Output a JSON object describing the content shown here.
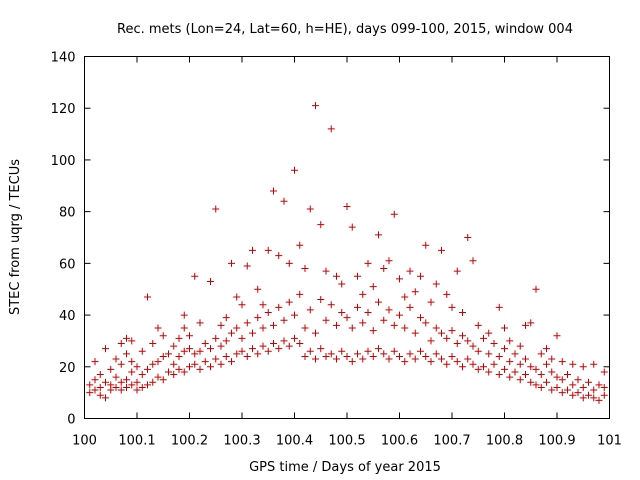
{
  "chart_data": {
    "type": "scatter",
    "title": "Rec. mets (Lon=24, Lat=60, h=HE), days 099-100, 2015, window 004",
    "xlabel": "GPS time / Days of year 2015",
    "ylabel": "STEC from uqrg / TECUs",
    "xlim": [
      100,
      101
    ],
    "ylim": [
      0,
      140
    ],
    "xticks": [
      100,
      100.1,
      100.2,
      100.3,
      100.4,
      100.5,
      100.6,
      100.7,
      100.8,
      100.9,
      101
    ],
    "xtick_labels": [
      "100",
      "100.1",
      "100.2",
      "100.3",
      "100.4",
      "100.5",
      "100.6",
      "100.7",
      "100.8",
      "100.9",
      "101"
    ],
    "yticks": [
      0,
      20,
      40,
      60,
      80,
      100,
      120,
      140
    ],
    "ytick_labels": [
      "0",
      "20",
      "40",
      "60",
      "80",
      "100",
      "120",
      "140"
    ],
    "grid": false,
    "legend": "none",
    "marker": "plus",
    "color": "#cc0000",
    "series": [
      {
        "points": [
          [
            100.01,
            10
          ],
          [
            100.01,
            13
          ],
          [
            100.02,
            11
          ],
          [
            100.02,
            15
          ],
          [
            100.02,
            22
          ],
          [
            100.03,
            9
          ],
          [
            100.03,
            12
          ],
          [
            100.03,
            17
          ],
          [
            100.04,
            8
          ],
          [
            100.04,
            14
          ],
          [
            100.04,
            27
          ],
          [
            100.05,
            11
          ],
          [
            100.05,
            13
          ],
          [
            100.05,
            19
          ],
          [
            100.06,
            12
          ],
          [
            100.06,
            16
          ],
          [
            100.06,
            23
          ],
          [
            100.07,
            11
          ],
          [
            100.07,
            14
          ],
          [
            100.07,
            21
          ],
          [
            100.07,
            29
          ],
          [
            100.08,
            12
          ],
          [
            100.08,
            15
          ],
          [
            100.08,
            25
          ],
          [
            100.08,
            31
          ],
          [
            100.09,
            13
          ],
          [
            100.09,
            18
          ],
          [
            100.09,
            22
          ],
          [
            100.09,
            30
          ],
          [
            100.1,
            11
          ],
          [
            100.1,
            14
          ],
          [
            100.1,
            20
          ],
          [
            100.11,
            12
          ],
          [
            100.11,
            17
          ],
          [
            100.11,
            26
          ],
          [
            100.12,
            13
          ],
          [
            100.12,
            19
          ],
          [
            100.12,
            47
          ],
          [
            100.13,
            14
          ],
          [
            100.13,
            21
          ],
          [
            100.13,
            29
          ],
          [
            100.14,
            16
          ],
          [
            100.14,
            22
          ],
          [
            100.14,
            35
          ],
          [
            100.15,
            15
          ],
          [
            100.15,
            24
          ],
          [
            100.15,
            32
          ],
          [
            100.16,
            18
          ],
          [
            100.16,
            25
          ],
          [
            100.17,
            17
          ],
          [
            100.17,
            21
          ],
          [
            100.17,
            28
          ],
          [
            100.18,
            19
          ],
          [
            100.18,
            24
          ],
          [
            100.18,
            31
          ],
          [
            100.19,
            18
          ],
          [
            100.19,
            26
          ],
          [
            100.19,
            35
          ],
          [
            100.19,
            40
          ],
          [
            100.2,
            20
          ],
          [
            100.2,
            27
          ],
          [
            100.2,
            32
          ],
          [
            100.21,
            21
          ],
          [
            100.21,
            25
          ],
          [
            100.21,
            55
          ],
          [
            100.22,
            19
          ],
          [
            100.22,
            26
          ],
          [
            100.22,
            37
          ],
          [
            100.23,
            22
          ],
          [
            100.23,
            29
          ],
          [
            100.24,
            20
          ],
          [
            100.24,
            27
          ],
          [
            100.24,
            53
          ],
          [
            100.25,
            23
          ],
          [
            100.25,
            31
          ],
          [
            100.25,
            81
          ],
          [
            100.26,
            21
          ],
          [
            100.26,
            28
          ],
          [
            100.26,
            36
          ],
          [
            100.27,
            24
          ],
          [
            100.27,
            30
          ],
          [
            100.27,
            39
          ],
          [
            100.28,
            22
          ],
          [
            100.28,
            33
          ],
          [
            100.28,
            60
          ],
          [
            100.29,
            25
          ],
          [
            100.29,
            35
          ],
          [
            100.29,
            47
          ],
          [
            100.3,
            26
          ],
          [
            100.3,
            31
          ],
          [
            100.3,
            44
          ],
          [
            100.31,
            24
          ],
          [
            100.31,
            37
          ],
          [
            100.31,
            59
          ],
          [
            100.32,
            27
          ],
          [
            100.32,
            33
          ],
          [
            100.32,
            65
          ],
          [
            100.33,
            25
          ],
          [
            100.33,
            39
          ],
          [
            100.33,
            50
          ],
          [
            100.34,
            28
          ],
          [
            100.34,
            35
          ],
          [
            100.34,
            44
          ],
          [
            100.35,
            26
          ],
          [
            100.35,
            41
          ],
          [
            100.35,
            65
          ],
          [
            100.36,
            29
          ],
          [
            100.36,
            36
          ],
          [
            100.36,
            88
          ],
          [
            100.37,
            27
          ],
          [
            100.37,
            43
          ],
          [
            100.37,
            63
          ],
          [
            100.38,
            30
          ],
          [
            100.38,
            38
          ],
          [
            100.38,
            84
          ],
          [
            100.39,
            28
          ],
          [
            100.39,
            45
          ],
          [
            100.39,
            60
          ],
          [
            100.4,
            31
          ],
          [
            100.4,
            40
          ],
          [
            100.4,
            96
          ],
          [
            100.41,
            29
          ],
          [
            100.41,
            48
          ],
          [
            100.41,
            67
          ],
          [
            100.42,
            24
          ],
          [
            100.42,
            35
          ],
          [
            100.42,
            58
          ],
          [
            100.43,
            26
          ],
          [
            100.43,
            42
          ],
          [
            100.43,
            81
          ],
          [
            100.44,
            23
          ],
          [
            100.44,
            33
          ],
          [
            100.44,
            121
          ],
          [
            100.45,
            27
          ],
          [
            100.45,
            46
          ],
          [
            100.45,
            75
          ],
          [
            100.46,
            24
          ],
          [
            100.46,
            38
          ],
          [
            100.46,
            57
          ],
          [
            100.47,
            25
          ],
          [
            100.47,
            44
          ],
          [
            100.47,
            112
          ],
          [
            100.48,
            23
          ],
          [
            100.48,
            36
          ],
          [
            100.48,
            55
          ],
          [
            100.49,
            26
          ],
          [
            100.49,
            41
          ],
          [
            100.49,
            52
          ],
          [
            100.5,
            24
          ],
          [
            100.5,
            39
          ],
          [
            100.5,
            82
          ],
          [
            100.51,
            22
          ],
          [
            100.51,
            35
          ],
          [
            100.51,
            74
          ],
          [
            100.52,
            25
          ],
          [
            100.52,
            43
          ],
          [
            100.52,
            55
          ],
          [
            100.53,
            23
          ],
          [
            100.53,
            37
          ],
          [
            100.53,
            48
          ],
          [
            100.54,
            26
          ],
          [
            100.54,
            41
          ],
          [
            100.54,
            60
          ],
          [
            100.55,
            24
          ],
          [
            100.55,
            34
          ],
          [
            100.55,
            51
          ],
          [
            100.56,
            27
          ],
          [
            100.56,
            45
          ],
          [
            100.56,
            71
          ],
          [
            100.57,
            25
          ],
          [
            100.57,
            38
          ],
          [
            100.57,
            58
          ],
          [
            100.58,
            23
          ],
          [
            100.58,
            42
          ],
          [
            100.58,
            61
          ],
          [
            100.59,
            26
          ],
          [
            100.59,
            36
          ],
          [
            100.59,
            79
          ],
          [
            100.6,
            24
          ],
          [
            100.6,
            40
          ],
          [
            100.6,
            54
          ],
          [
            100.61,
            22
          ],
          [
            100.61,
            35
          ],
          [
            100.61,
            47
          ],
          [
            100.62,
            25
          ],
          [
            100.62,
            43
          ],
          [
            100.62,
            57
          ],
          [
            100.63,
            23
          ],
          [
            100.63,
            33
          ],
          [
            100.63,
            49
          ],
          [
            100.64,
            26
          ],
          [
            100.64,
            39
          ],
          [
            100.64,
            55
          ],
          [
            100.65,
            24
          ],
          [
            100.65,
            37
          ],
          [
            100.65,
            67
          ],
          [
            100.66,
            22
          ],
          [
            100.66,
            30
          ],
          [
            100.66,
            45
          ],
          [
            100.67,
            25
          ],
          [
            100.67,
            35
          ],
          [
            100.67,
            52
          ],
          [
            100.68,
            23
          ],
          [
            100.68,
            33
          ],
          [
            100.68,
            65
          ],
          [
            100.69,
            21
          ],
          [
            100.69,
            31
          ],
          [
            100.69,
            48
          ],
          [
            100.7,
            24
          ],
          [
            100.7,
            34
          ],
          [
            100.7,
            43
          ],
          [
            100.71,
            22
          ],
          [
            100.71,
            29
          ],
          [
            100.71,
            57
          ],
          [
            100.72,
            20
          ],
          [
            100.72,
            32
          ],
          [
            100.72,
            41
          ],
          [
            100.73,
            23
          ],
          [
            100.73,
            30
          ],
          [
            100.73,
            70
          ],
          [
            100.74,
            21
          ],
          [
            100.74,
            28
          ],
          [
            100.74,
            61
          ],
          [
            100.75,
            19
          ],
          [
            100.75,
            26
          ],
          [
            100.75,
            36
          ],
          [
            100.76,
            20
          ],
          [
            100.76,
            31
          ],
          [
            100.77,
            18
          ],
          [
            100.77,
            25
          ],
          [
            100.77,
            33
          ],
          [
            100.78,
            21
          ],
          [
            100.78,
            29
          ],
          [
            100.79,
            17
          ],
          [
            100.79,
            24
          ],
          [
            100.79,
            43
          ],
          [
            100.8,
            19
          ],
          [
            100.8,
            27
          ],
          [
            100.8,
            35
          ],
          [
            100.81,
            16
          ],
          [
            100.81,
            22
          ],
          [
            100.81,
            30
          ],
          [
            100.82,
            18
          ],
          [
            100.82,
            25
          ],
          [
            100.83,
            15
          ],
          [
            100.83,
            21
          ],
          [
            100.83,
            28
          ],
          [
            100.84,
            17
          ],
          [
            100.84,
            23
          ],
          [
            100.84,
            36
          ],
          [
            100.85,
            14
          ],
          [
            100.85,
            20
          ],
          [
            100.85,
            37
          ],
          [
            100.86,
            13
          ],
          [
            100.86,
            19
          ],
          [
            100.86,
            50
          ],
          [
            100.87,
            12
          ],
          [
            100.87,
            17
          ],
          [
            100.87,
            25
          ],
          [
            100.88,
            14
          ],
          [
            100.88,
            21
          ],
          [
            100.88,
            27
          ],
          [
            100.89,
            11
          ],
          [
            100.89,
            18
          ],
          [
            100.89,
            23
          ],
          [
            100.9,
            12
          ],
          [
            100.9,
            16
          ],
          [
            100.9,
            32
          ],
          [
            100.91,
            10
          ],
          [
            100.91,
            15
          ],
          [
            100.91,
            22
          ],
          [
            100.92,
            11
          ],
          [
            100.92,
            17
          ],
          [
            100.93,
            9
          ],
          [
            100.93,
            13
          ],
          [
            100.93,
            21
          ],
          [
            100.94,
            10
          ],
          [
            100.94,
            15
          ],
          [
            100.95,
            8
          ],
          [
            100.95,
            12
          ],
          [
            100.95,
            20
          ],
          [
            100.96,
            9
          ],
          [
            100.96,
            14
          ],
          [
            100.97,
            8
          ],
          [
            100.97,
            11
          ],
          [
            100.97,
            21
          ],
          [
            100.98,
            7
          ],
          [
            100.98,
            13
          ],
          [
            100.99,
            9
          ],
          [
            100.99,
            12
          ],
          [
            100.99,
            18
          ]
        ]
      }
    ]
  }
}
